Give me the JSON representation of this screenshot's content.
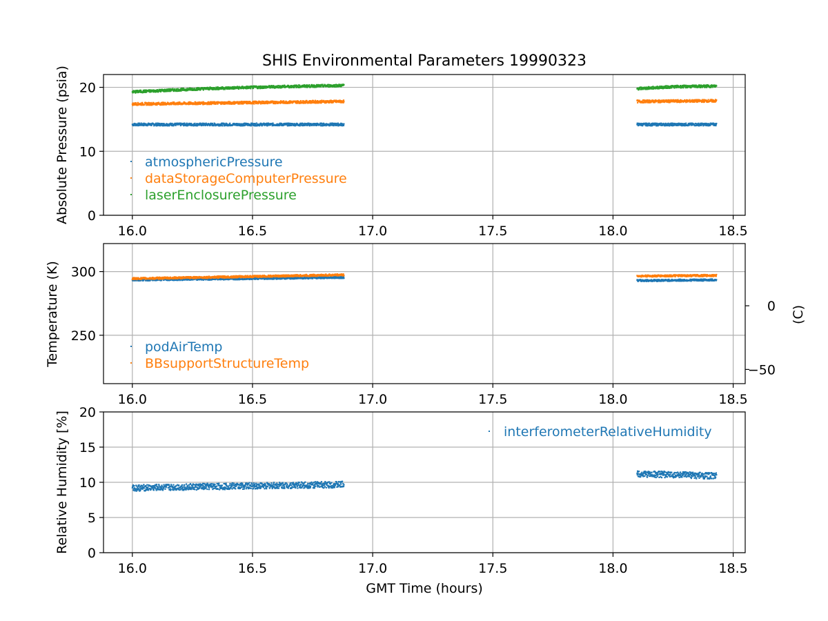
{
  "chart_data": {
    "title": "SHIS Environmental Parameters 19990323",
    "type": "scatter",
    "x_label": "GMT Time (hours)",
    "x_ticks": [
      16.0,
      16.5,
      17.0,
      17.5,
      18.0,
      18.5
    ],
    "x_range": [
      15.88,
      18.55
    ],
    "grid": true,
    "colors": {
      "c0": "#1f77b4",
      "c1": "#ff7f0e",
      "c2": "#2ca02c"
    },
    "panels": [
      {
        "id": "pressure",
        "y_label": "Absolute Pressure (psia)",
        "y_range": [
          0,
          22
        ],
        "y_ticks": [
          0,
          10,
          20
        ],
        "legend_location": "lower-left",
        "series": [
          {
            "name": "atmosphericPressure",
            "color": "#1f77b4",
            "thickness": 0.4,
            "segments": [
              {
                "x": [
                  16.0,
                  16.88
                ],
                "y": [
                  14.2,
                  14.2
                ]
              },
              {
                "x": [
                  18.1,
                  18.43
                ],
                "y": [
                  14.2,
                  14.2
                ]
              }
            ]
          },
          {
            "name": "dataStorageComputerPressure",
            "color": "#ff7f0e",
            "thickness": 0.4,
            "segments": [
              {
                "x": [
                  16.0,
                  16.88
                ],
                "y": [
                  17.4,
                  17.8
                ]
              },
              {
                "x": [
                  18.1,
                  18.43
                ],
                "y": [
                  17.8,
                  17.9
                ]
              }
            ]
          },
          {
            "name": "laserEnclosurePressure",
            "color": "#2ca02c",
            "thickness": 0.4,
            "segments": [
              {
                "x": [
                  16.0,
                  16.3,
                  16.6,
                  16.88
                ],
                "y": [
                  19.3,
                  19.8,
                  20.1,
                  20.3
                ]
              },
              {
                "x": [
                  18.1,
                  18.25,
                  18.43
                ],
                "y": [
                  19.8,
                  20.1,
                  20.2
                ]
              }
            ]
          }
        ]
      },
      {
        "id": "temperature",
        "y_label": "Temperature (K)",
        "y_range": [
          212,
          322
        ],
        "y_ticks": [
          250,
          300
        ],
        "secondary_y_label": "(C)",
        "secondary_y_ticks": [
          0,
          -50
        ],
        "legend_location": "lower-left",
        "series": [
          {
            "name": "podAirTemp",
            "color": "#1f77b4",
            "thickness": 1.5,
            "segments": [
              {
                "x": [
                  16.0,
                  16.88
                ],
                "y": [
                  293.5,
                  295.5
                ]
              },
              {
                "x": [
                  18.1,
                  18.43
                ],
                "y": [
                  293.0,
                  293.5
                ]
              }
            ]
          },
          {
            "name": "BBsupportStructureTemp",
            "color": "#ff7f0e",
            "thickness": 1.5,
            "segments": [
              {
                "x": [
                  16.0,
                  16.88
                ],
                "y": [
                  294.5,
                  297.5
                ]
              },
              {
                "x": [
                  18.1,
                  18.43
                ],
                "y": [
                  296.5,
                  297.0
                ]
              }
            ]
          }
        ]
      },
      {
        "id": "humidity",
        "y_label": "Relative Humidity [%]",
        "y_range": [
          0,
          20
        ],
        "y_ticks": [
          0,
          5,
          10,
          15,
          20
        ],
        "legend_location": "upper-right",
        "series": [
          {
            "name": "interferometerRelativeHumidity",
            "color": "#1f77b4",
            "thickness": 0.9,
            "segments": [
              {
                "x": [
                  16.0,
                  16.4,
                  16.88
                ],
                "y": [
                  9.2,
                  9.45,
                  9.7
                ]
              },
              {
                "x": [
                  18.1,
                  18.25,
                  18.43
                ],
                "y": [
                  11.2,
                  11.1,
                  10.9
                ]
              }
            ]
          }
        ]
      }
    ]
  }
}
